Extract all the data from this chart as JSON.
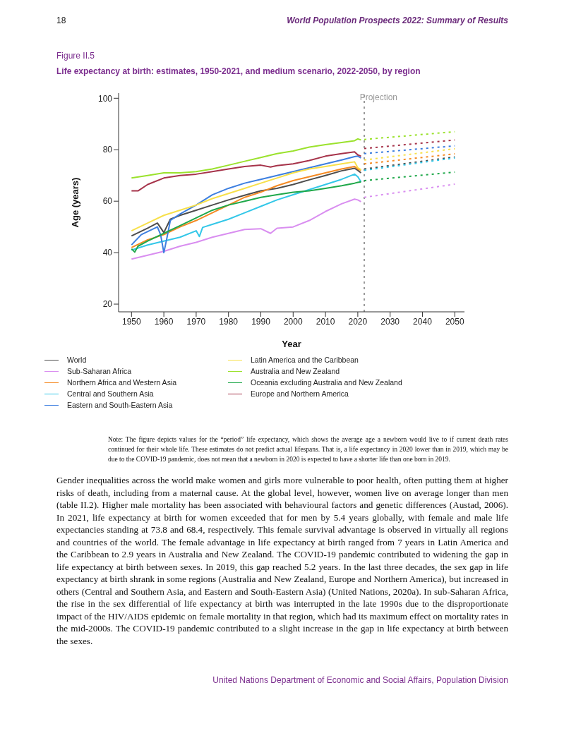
{
  "chart_data": {
    "type": "line",
    "title": "Figure II.5",
    "subtitle": "Life expectancy at birth: estimates, 1950-2021, and medium scenario, 2022-2050, by region",
    "xlabel": "Year",
    "ylabel": "Age (years)",
    "xlim": [
      1946,
      2053
    ],
    "xticks": [
      1950,
      1960,
      1970,
      1980,
      1990,
      2000,
      2010,
      2020,
      2030,
      2040,
      2050
    ],
    "ylim": [
      17,
      102
    ],
    "yticks": [
      20,
      40,
      60,
      80,
      100
    ],
    "grid": false,
    "legend": "bottom",
    "ref_lines": [
      {
        "axis": "x",
        "value": 2022,
        "label": "Projection",
        "color": "#999999",
        "line_style": "dotted"
      }
    ],
    "series": [
      {
        "name": "World",
        "color": "#4d4d4d",
        "x": [
          1950,
          1955,
          1958,
          1960,
          1962,
          1965,
          1970,
          1975,
          1980,
          1985,
          1990,
          1995,
          2000,
          2005,
          2010,
          2015,
          2019,
          2020,
          2021
        ],
        "values": [
          46.5,
          49.5,
          51.5,
          47.8,
          53,
          54.5,
          56.5,
          58.5,
          60.5,
          62.3,
          64,
          65,
          66.5,
          68.3,
          70,
          71.8,
          72.8,
          72,
          71
        ]
      },
      {
        "name": "Sub-Saharan Africa",
        "color": "#d98ef0",
        "x": [
          1950,
          1955,
          1960,
          1965,
          1970,
          1975,
          1980,
          1985,
          1990,
          1993,
          1995,
          2000,
          2005,
          2010,
          2015,
          2019,
          2020,
          2021
        ],
        "values": [
          37.5,
          39,
          40.5,
          42.5,
          44,
          46,
          47.5,
          49,
          49.3,
          47.5,
          49.5,
          50,
          52.5,
          56,
          59,
          60.8,
          60.5,
          59.8
        ]
      },
      {
        "name": "Northern Africa and Western Asia",
        "color": "#f58a23",
        "x": [
          1950,
          1955,
          1960,
          1965,
          1970,
          1975,
          1980,
          1985,
          1990,
          1995,
          2000,
          2005,
          2010,
          2015,
          2019,
          2020,
          2021
        ],
        "values": [
          42,
          45,
          47,
          50,
          52.5,
          55.5,
          58.5,
          61.5,
          63.5,
          66,
          68,
          69.5,
          71,
          72.5,
          73.5,
          72.5,
          72
        ]
      },
      {
        "name": "Central and Southern Asia",
        "color": "#33c7e8",
        "x": [
          1950,
          1955,
          1960,
          1965,
          1970,
          1971,
          1972,
          1975,
          1980,
          1985,
          1990,
          1995,
          2000,
          2005,
          2010,
          2015,
          2019,
          2020,
          2021
        ],
        "values": [
          41,
          43,
          44.5,
          46,
          48.5,
          46.3,
          49.8,
          51,
          53,
          55.5,
          58,
          60.5,
          62.5,
          64.5,
          66.5,
          68.5,
          70.5,
          69.5,
          67.5
        ]
      },
      {
        "name": "Eastern and South-Eastern Asia",
        "color": "#3d7fe0",
        "x": [
          1950,
          1953,
          1958,
          1959,
          1960,
          1961,
          1962,
          1965,
          1970,
          1975,
          1980,
          1985,
          1990,
          1995,
          2000,
          2005,
          2010,
          2015,
          2019,
          2020,
          2021
        ],
        "values": [
          43,
          47,
          50,
          47,
          40,
          46,
          52.5,
          55,
          58.5,
          62.5,
          65,
          67,
          68.5,
          70,
          71.5,
          73,
          74.5,
          76,
          77.3,
          77.5,
          76.8
        ]
      },
      {
        "name": "Latin America and the Caribbean",
        "color": "#f7e04a",
        "x": [
          1950,
          1955,
          1960,
          1965,
          1970,
          1975,
          1980,
          1985,
          1990,
          1995,
          2000,
          2005,
          2010,
          2015,
          2019,
          2020,
          2021
        ],
        "values": [
          48.5,
          51.5,
          54.5,
          56.5,
          58.5,
          61,
          63,
          65,
          67,
          69,
          71,
          72.5,
          73.5,
          74.5,
          75.3,
          73,
          72.2
        ]
      },
      {
        "name": "Australia and New Zealand",
        "color": "#9be22d",
        "x": [
          1950,
          1955,
          1960,
          1965,
          1970,
          1975,
          1980,
          1985,
          1990,
          1995,
          2000,
          2005,
          2010,
          2015,
          2019,
          2020,
          2021
        ],
        "values": [
          69,
          70,
          71,
          71,
          71.5,
          72.5,
          74,
          75.5,
          77,
          78.5,
          79.5,
          81,
          82,
          82.8,
          83.5,
          84.2,
          83.8
        ]
      },
      {
        "name": "Oceania excluding Australia and New Zealand",
        "color": "#1fa84a",
        "x": [
          1950,
          1951,
          1952,
          1955,
          1960,
          1965,
          1970,
          1975,
          1980,
          1985,
          1990,
          1995,
          2000,
          2005,
          2010,
          2015,
          2019,
          2020,
          2021
        ],
        "values": [
          41.5,
          40.2,
          42.5,
          44.5,
          47.5,
          50.5,
          53.5,
          56.5,
          58.5,
          60,
          61.5,
          62.5,
          63.5,
          64,
          65,
          66,
          67,
          67.3,
          67.5
        ]
      },
      {
        "name": "Europe and Northern America",
        "color": "#a6334a",
        "x": [
          1950,
          1952,
          1955,
          1960,
          1965,
          1970,
          1975,
          1980,
          1985,
          1990,
          1993,
          1995,
          2000,
          2005,
          2010,
          2015,
          2019,
          2020,
          2021
        ],
        "values": [
          64,
          64,
          66.5,
          69,
          70,
          70.5,
          71.5,
          72.5,
          73.5,
          74,
          73.3,
          73.8,
          74.5,
          75.8,
          77.5,
          78.5,
          79.2,
          78,
          77.5
        ]
      },
      {
        "color": "#4d4d4d",
        "line_style": "dotted",
        "x": [
          2022,
          2050
        ],
        "values": [
          72.5,
          77.2
        ]
      },
      {
        "color": "#d98ef0",
        "line_style": "dotted",
        "x": [
          2022,
          2050
        ],
        "values": [
          61.5,
          66.6
        ]
      },
      {
        "color": "#f58a23",
        "line_style": "dotted",
        "x": [
          2022,
          2050
        ],
        "values": [
          74.5,
          78.4
        ]
      },
      {
        "color": "#33c7e8",
        "line_style": "dotted",
        "x": [
          2022,
          2050
        ],
        "values": [
          72,
          76.8
        ]
      },
      {
        "color": "#3d7fe0",
        "line_style": "dotted",
        "x": [
          2022,
          2050
        ],
        "values": [
          78.5,
          81.5
        ]
      },
      {
        "color": "#f7e04a",
        "line_style": "dotted",
        "x": [
          2022,
          2050
        ],
        "values": [
          76,
          80.4
        ]
      },
      {
        "color": "#9be22d",
        "line_style": "dotted",
        "x": [
          2022,
          2050
        ],
        "values": [
          84,
          87
        ]
      },
      {
        "color": "#1fa84a",
        "line_style": "dotted",
        "x": [
          2022,
          2050
        ],
        "values": [
          68,
          71.3
        ]
      },
      {
        "color": "#a6334a",
        "line_style": "dotted",
        "x": [
          2022,
          2050
        ],
        "values": [
          80.5,
          83.8
        ]
      }
    ],
    "annotations": [
      "18",
      "World Population Prospects 2022: Summary of Results",
      "Note: The figure depicts values for the “period” life expectancy, which shows the average age a newborn would live to if current death rates continued for their whole life. These estimates do not predict actual lifespans. That is, a life expectancy in 2020 lower than in 2019, which may be due to the COVID-19 pandemic, does not mean that a newborn in 2020 is expected to have a shorter life than one born in 2019.",
      "Gender inequalities across the world make women and girls more vulnerable to poor health, often putting them at higher risks of death, including from a maternal cause. At the global level, however, women live on average longer than men (table II.2). Higher male mortality has been associated with behavioural factors and genetic differences (Austad, 2006). In 2021, life expectancy at birth for women exceeded that for men by 5.4 years globally, with female and male life expectancies standing at 73.8 and 68.4, respectively. This female survival advantage is observed in virtually all regions and countries of the world. The female advantage in life expectancy at birth ranged from 7 years in Latin America and the Caribbean to 2.9 years in Australia and New Zealand. The COVID-19 pandemic contributed to widening the gap in life expectancy at birth between sexes. In 2019, this gap reached 5.2 years. In the last three decades, the sex gap in life expectancy at birth shrank in some regions (Australia and New Zealand, Europe and Northern America), but increased in others (Central and Southern Asia, and Eastern and South-Eastern Asia) (United Nations, 2020a). In sub-Saharan Africa, the rise in the sex differential of life expectancy at birth was interrupted in the late 1990s due to the disproportionate impact of the HIV/AIDS epidemic on female mortality in that region, which had its maximum effect on mortality rates in the mid-2000s. The COVID-19 pandemic contributed to a slight increase in the gap in life expectancy at birth between the sexes.",
      "United Nations Department of Economic and Social Affairs, Population Division"
    ]
  }
}
